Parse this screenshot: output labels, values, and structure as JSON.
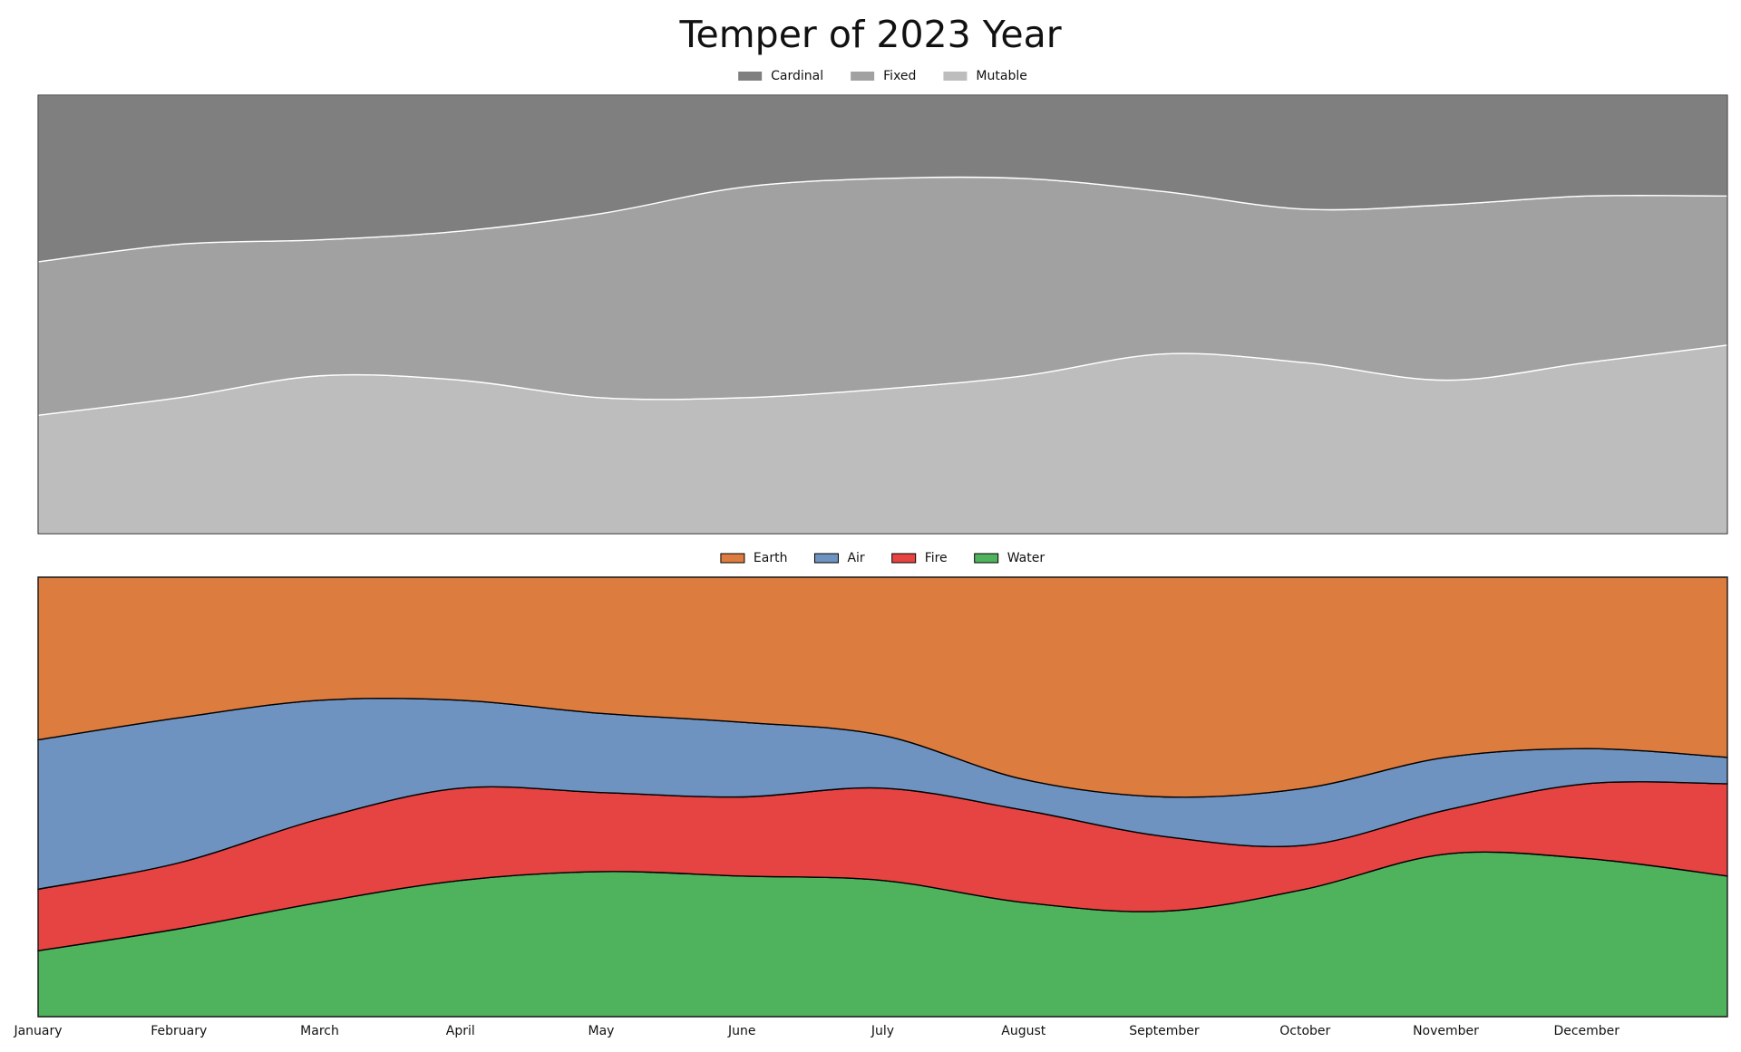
{
  "chart_data": [
    {
      "type": "stacked_area",
      "title": "Temper of 2023 Year",
      "series": [
        {
          "name": "Cardinal",
          "color": "#7f7f7f",
          "values": [
            38,
            34,
            33,
            31,
            27,
            21,
            19,
            19,
            22,
            26,
            25,
            23,
            23
          ]
        },
        {
          "name": "Fixed",
          "color": "#a1a1a1",
          "values": [
            35,
            35,
            31,
            34,
            42,
            48,
            48,
            45,
            37,
            35,
            40,
            38,
            34
          ]
        },
        {
          "name": "Mutable",
          "color": "#bdbdbd",
          "values": [
            27,
            31,
            36,
            35,
            31,
            31,
            33,
            36,
            41,
            39,
            35,
            39,
            43
          ]
        }
      ],
      "ylim": [
        0,
        100
      ],
      "edgecolor": "#ffffff",
      "legend": "upper center"
    },
    {
      "type": "stacked_area",
      "categories": [
        "January",
        "February",
        "March",
        "April",
        "May",
        "June",
        "July",
        "August",
        "September",
        "October",
        "November",
        "December",
        null
      ],
      "series": [
        {
          "name": "Earth",
          "color": "#dd7c3f",
          "values": [
            37,
            32,
            28,
            28,
            31,
            33,
            36,
            46,
            50,
            48,
            41,
            39,
            41
          ]
        },
        {
          "name": "Air",
          "color": "#6e93c0",
          "values": [
            34,
            33,
            27,
            20,
            18,
            17,
            12,
            7,
            9,
            13,
            12,
            8,
            6
          ]
        },
        {
          "name": "Fire",
          "color": "#e64343",
          "values": [
            14,
            15,
            19,
            21,
            18,
            18,
            21,
            21,
            17,
            10,
            10,
            17,
            21
          ]
        },
        {
          "name": "Water",
          "color": "#4fb35e",
          "values": [
            15,
            20,
            26,
            31,
            33,
            32,
            31,
            26,
            24,
            29,
            37,
            36,
            32
          ]
        }
      ],
      "ylim": [
        0,
        100
      ],
      "edgecolor": "#000000",
      "legend": "upper center"
    }
  ]
}
